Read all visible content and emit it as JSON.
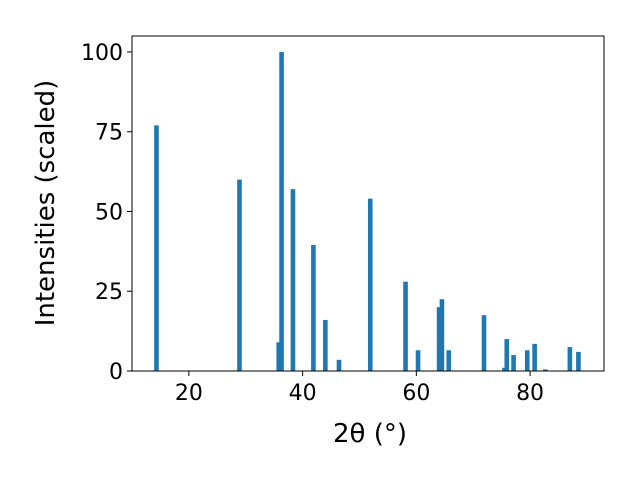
{
  "chart_data": {
    "type": "bar",
    "xlabel": "2θ (°)",
    "ylabel": "Intensities (scaled)",
    "xlim": [
      10,
      93
    ],
    "ylim": [
      0,
      105
    ],
    "xticks": [
      20,
      40,
      60,
      80
    ],
    "yticks": [
      0,
      25,
      50,
      75,
      100
    ],
    "bar_color": "#1f77b4",
    "grid": false,
    "x": [
      14.3,
      28.9,
      35.8,
      36.3,
      38.3,
      41.9,
      44.0,
      46.4,
      51.9,
      58.1,
      60.3,
      64.0,
      64.5,
      65.7,
      71.9,
      75.5,
      75.9,
      77.1,
      79.5,
      80.8,
      82.7,
      87.0,
      88.5
    ],
    "values": [
      77,
      60,
      9,
      100,
      57,
      39.5,
      16,
      3.5,
      54,
      28,
      6.5,
      20,
      22.5,
      6.5,
      17.5,
      1,
      10,
      5,
      6.5,
      8.5,
      0.5,
      7.5,
      6
    ]
  }
}
